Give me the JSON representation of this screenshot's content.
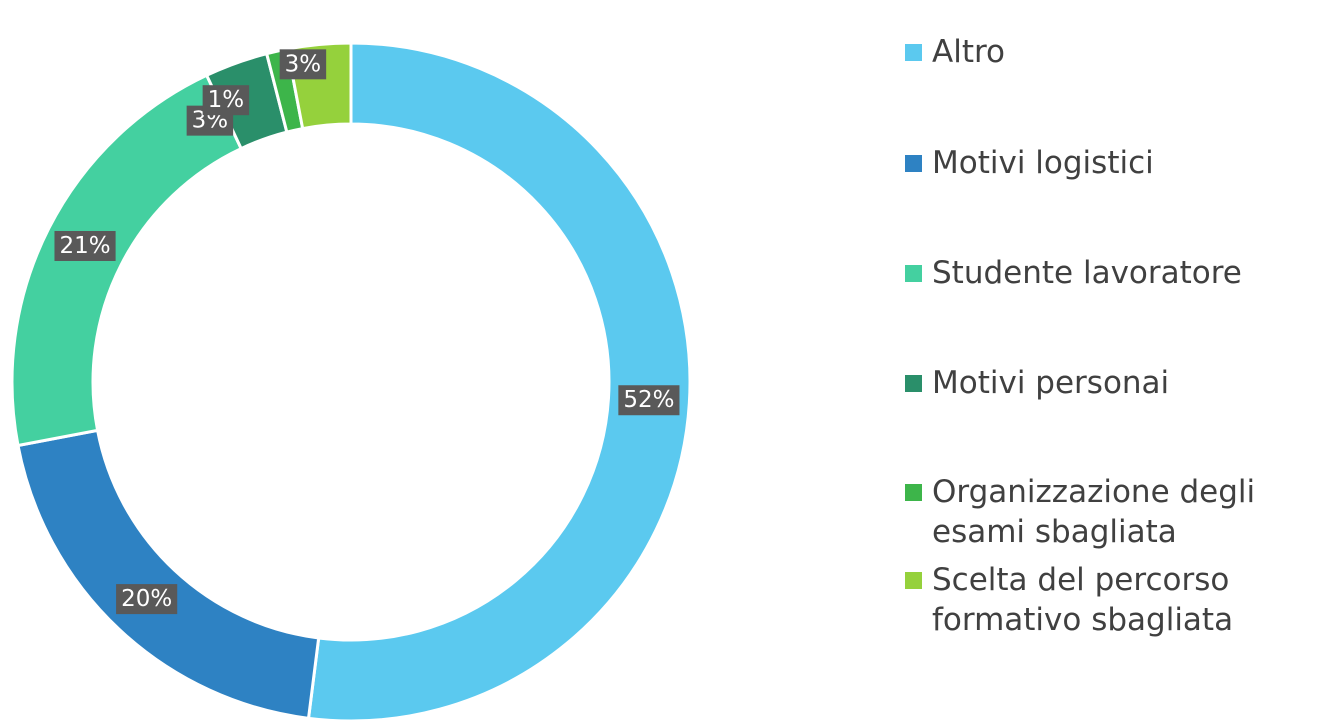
{
  "chart_data": {
    "type": "donut",
    "categories": [
      "Altro",
      "Motivi logistici",
      "Studente lavoratore",
      "Motivi personai",
      "Organizzazione degli esami sbagliata",
      "Scelta del percorso formativo sbagliata"
    ],
    "values": [
      52,
      20,
      21,
      3,
      1,
      3
    ],
    "value_labels": [
      "52%",
      "20%",
      "21%",
      "3%",
      "1%",
      "3%"
    ],
    "colors": [
      "#5bc9ef",
      "#2e82c3",
      "#44d0a0",
      "#2a8f6a",
      "#3db54a",
      "#95d13c"
    ],
    "legend": "right"
  }
}
